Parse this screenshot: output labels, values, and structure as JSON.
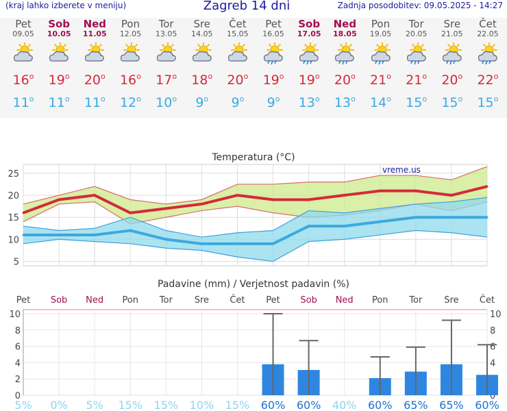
{
  "header": {
    "hint": "(kraj lahko izberete v meniju)",
    "title": "Zagreb 14 dni",
    "updated": "Zadnja posodobitev: 09.05.2025 - 14:27"
  },
  "colors": {
    "max": "#d42a3a",
    "min": "#3aa9e0",
    "weekend": "#a01050",
    "bar": "#2f86e0"
  },
  "days": [
    {
      "name": "Pet",
      "date": "09.05",
      "weekend": false,
      "icon": "sun-cloud-icon",
      "max": "16",
      "min": "11"
    },
    {
      "name": "Sob",
      "date": "10.05",
      "weekend": true,
      "icon": "sun-cloud-icon",
      "max": "19",
      "min": "11"
    },
    {
      "name": "Ned",
      "date": "11.05",
      "weekend": true,
      "icon": "sun-cloud-icon",
      "max": "20",
      "min": "11"
    },
    {
      "name": "Pon",
      "date": "12.05",
      "weekend": false,
      "icon": "sun-cloud-icon",
      "max": "16",
      "min": "12"
    },
    {
      "name": "Tor",
      "date": "13.05",
      "weekend": false,
      "icon": "sun-cloud-icon",
      "max": "17",
      "min": "10"
    },
    {
      "name": "Sre",
      "date": "14.05",
      "weekend": false,
      "icon": "sun-cloud-icon",
      "max": "18",
      "min": "9"
    },
    {
      "name": "Čet",
      "date": "15.05",
      "weekend": false,
      "icon": "sun-cloud-icon",
      "max": "20",
      "min": "9"
    },
    {
      "name": "Pet",
      "date": "16.05",
      "weekend": false,
      "icon": "sun-rain-icon",
      "max": "19",
      "min": "9"
    },
    {
      "name": "Sob",
      "date": "17.05",
      "weekend": true,
      "icon": "sun-rain-icon",
      "max": "19",
      "min": "13"
    },
    {
      "name": "Ned",
      "date": "18.05",
      "weekend": true,
      "icon": "sun-rain-icon",
      "max": "20",
      "min": "13"
    },
    {
      "name": "Pon",
      "date": "19.05",
      "weekend": false,
      "icon": "sun-rain-icon",
      "max": "21",
      "min": "14"
    },
    {
      "name": "Tor",
      "date": "20.05",
      "weekend": false,
      "icon": "sun-rain-icon",
      "max": "21",
      "min": "15"
    },
    {
      "name": "Sre",
      "date": "21.05",
      "weekend": false,
      "icon": "sun-rain-icon",
      "max": "20",
      "min": "15"
    },
    {
      "name": "Čet",
      "date": "22.05",
      "weekend": false,
      "icon": "sun-rain-icon",
      "max": "22",
      "min": "15"
    }
  ],
  "chart_data": [
    {
      "type": "line",
      "title": "Temperatura (°C)",
      "watermark": "vreme.us",
      "ylim": [
        4,
        27
      ],
      "yticks": [
        5,
        10,
        15,
        20,
        25
      ],
      "grid": true,
      "series": [
        {
          "name": "max",
          "values": [
            16,
            19,
            20,
            16,
            17,
            18,
            20,
            19,
            19,
            20,
            21,
            21,
            20,
            22
          ]
        },
        {
          "name": "max_range_high",
          "values": [
            18,
            20,
            22,
            19,
            18,
            19,
            22.5,
            22.5,
            23,
            23,
            24.5,
            24.5,
            23.5,
            26.5
          ]
        },
        {
          "name": "max_range_low",
          "values": [
            14,
            18,
            18.5,
            13.5,
            15,
            16.5,
            17.5,
            16,
            15,
            15.5,
            16.5,
            18,
            16.5,
            18.5
          ]
        },
        {
          "name": "min",
          "values": [
            11,
            11,
            11,
            12,
            10,
            9,
            9,
            9,
            13,
            13,
            14,
            15,
            15,
            15
          ]
        },
        {
          "name": "min_range_high",
          "values": [
            13,
            12,
            12.5,
            15,
            12,
            10.5,
            11.5,
            12,
            16.5,
            16,
            17,
            18,
            18.5,
            19.5
          ]
        },
        {
          "name": "min_range_low",
          "values": [
            9,
            10,
            9.5,
            9,
            8,
            7.5,
            6,
            5,
            9.5,
            10,
            11,
            12,
            11.5,
            10.5
          ]
        }
      ]
    },
    {
      "type": "bar",
      "title": "Padavine (mm) / Verjetnost padavin (%)",
      "categories": [
        "Pet",
        "Sob",
        "Ned",
        "Pon",
        "Tor",
        "Sre",
        "Čet",
        "Pet",
        "Sob",
        "Ned",
        "Pon",
        "Tor",
        "Sre",
        "Čet"
      ],
      "ylim": [
        0,
        10.5
      ],
      "yticks": [
        0,
        2,
        4,
        6,
        8,
        10
      ],
      "values": [
        0,
        0,
        0,
        0,
        0,
        0,
        0,
        3.8,
        3.1,
        0,
        2.1,
        2.9,
        3.8,
        2.5
      ],
      "error_high": [
        0,
        0,
        0,
        0,
        0,
        0,
        0,
        10,
        6.7,
        0,
        4.7,
        5.9,
        9.2,
        6.2
      ],
      "probability": [
        "5%",
        "0%",
        "5%",
        "15%",
        "15%",
        "10%",
        "15%",
        "60%",
        "60%",
        "40%",
        "60%",
        "65%",
        "65%",
        "60%"
      ]
    }
  ]
}
